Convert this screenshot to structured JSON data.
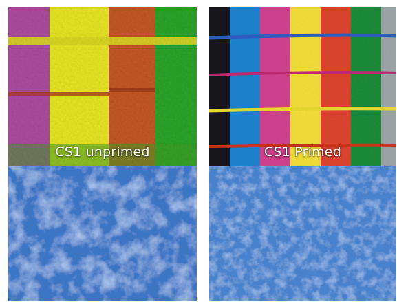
{
  "panels": [
    {
      "caption": "CS1 unprimed",
      "stripe_colors": [
        "#b0409a",
        "#e8e61e",
        "#c2501c",
        "#20a020"
      ],
      "line_color": "#d8c81a",
      "substrate_color": "#3f79c8"
    },
    {
      "caption": "CS1 Primed",
      "stripe_colors": [
        "#161a22",
        "#1c82cf",
        "#d0408e",
        "#f0e03a",
        "#dd4030",
        "#1a8a3a",
        "#a0a8aa"
      ],
      "line_colors": [
        "#3060c0",
        "#c02870",
        "#e8d830",
        "#d03020"
      ],
      "substrate_color": "#4a82cc"
    }
  ]
}
